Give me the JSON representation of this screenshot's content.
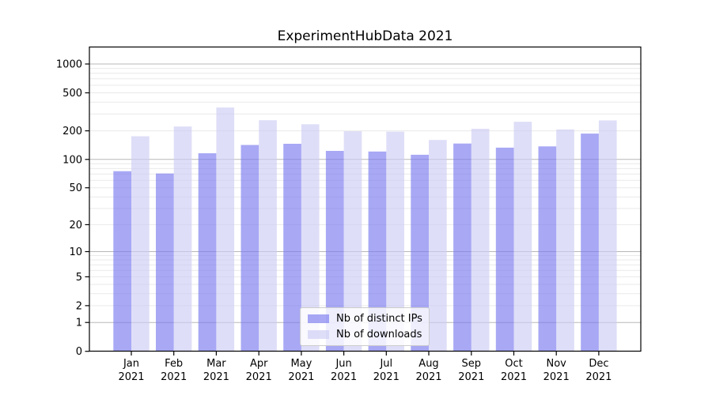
{
  "title": "ExperimentHubData 2021",
  "chart_data": {
    "type": "bar",
    "title": "ExperimentHubData 2021",
    "categories": [
      "Jan 2021",
      "Feb 2021",
      "Mar 2021",
      "Apr 2021",
      "May 2021",
      "Jun 2021",
      "Jul 2021",
      "Aug 2021",
      "Sep 2021",
      "Oct 2021",
      "Nov 2021",
      "Dec 2021"
    ],
    "series": [
      {
        "name": "Nb of distinct IPs",
        "color": "#7a7af0",
        "opacity": 0.65,
        "values": [
          75,
          71,
          116,
          142,
          146,
          123,
          121,
          112,
          147,
          133,
          137,
          187
        ]
      },
      {
        "name": "Nb of downloads",
        "color": "#ccccf5",
        "opacity": 0.65,
        "values": [
          175,
          222,
          351,
          258,
          234,
          198,
          196,
          160,
          210,
          249,
          207,
          257
        ]
      }
    ],
    "yscale": "log1p",
    "ylim": [
      0,
      1500
    ],
    "yticks": [
      0,
      1,
      2,
      5,
      10,
      20,
      50,
      100,
      200,
      500,
      1000
    ],
    "major_gridlines": [
      1,
      10,
      100,
      1000
    ],
    "minor_gridline_mantissas": [
      2,
      3,
      4,
      5,
      6,
      7,
      8,
      9
    ],
    "grid": "both",
    "legend_position": "lower center",
    "colors": {
      "major_grid": "#b8b8b8",
      "minor_grid": "#e9e9e9",
      "spine": "#000000",
      "tick": "#000000",
      "text": "#000000",
      "background": "#ffffff",
      "legend_bg": "rgba(255,255,255,0.8)",
      "legend_border": "#cccccc"
    }
  }
}
